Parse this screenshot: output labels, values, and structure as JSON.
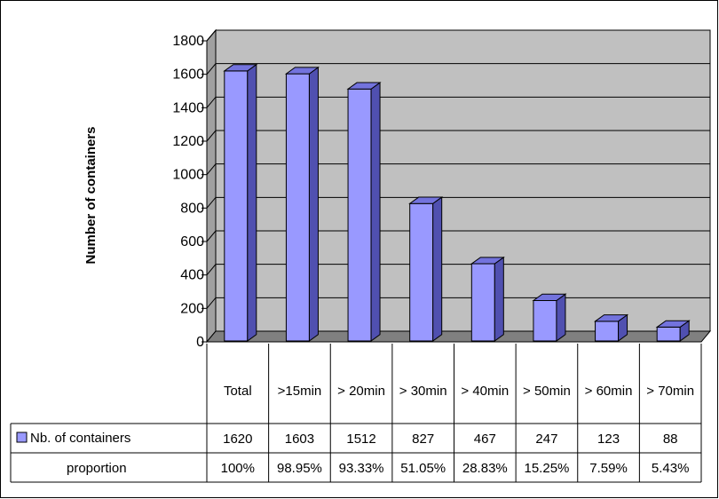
{
  "chart_data": {
    "type": "bar",
    "categories": [
      "Total",
      ">15min",
      "> 20min",
      "> 30min",
      "> 40min",
      "> 50min",
      "> 60min",
      "> 70min"
    ],
    "series": [
      {
        "name": "Nb. of containers",
        "values": [
          1620,
          1603,
          1512,
          827,
          467,
          247,
          123,
          88
        ],
        "color": "#9999ff"
      }
    ],
    "proportion": {
      "name": "proportion",
      "values": [
        "100%",
        "98.95%",
        "93.33%",
        "51.05%",
        "28.83%",
        "15.25%",
        "7.59%",
        "5.43%"
      ]
    },
    "ylabel": "Number of containers",
    "xlabel": "",
    "title": "",
    "ylim": [
      0,
      1800
    ],
    "yticks": [
      0,
      200,
      400,
      600,
      800,
      1000,
      1200,
      1400,
      1600,
      1800
    ],
    "grid": true,
    "legend": "data-table",
    "style": "3d-column",
    "colors": {
      "wall": "#c0c0c0",
      "floor": "#808080",
      "bar": "#9999ff",
      "bar_side": "#5050b0",
      "bar_top": "#7373dd"
    }
  }
}
